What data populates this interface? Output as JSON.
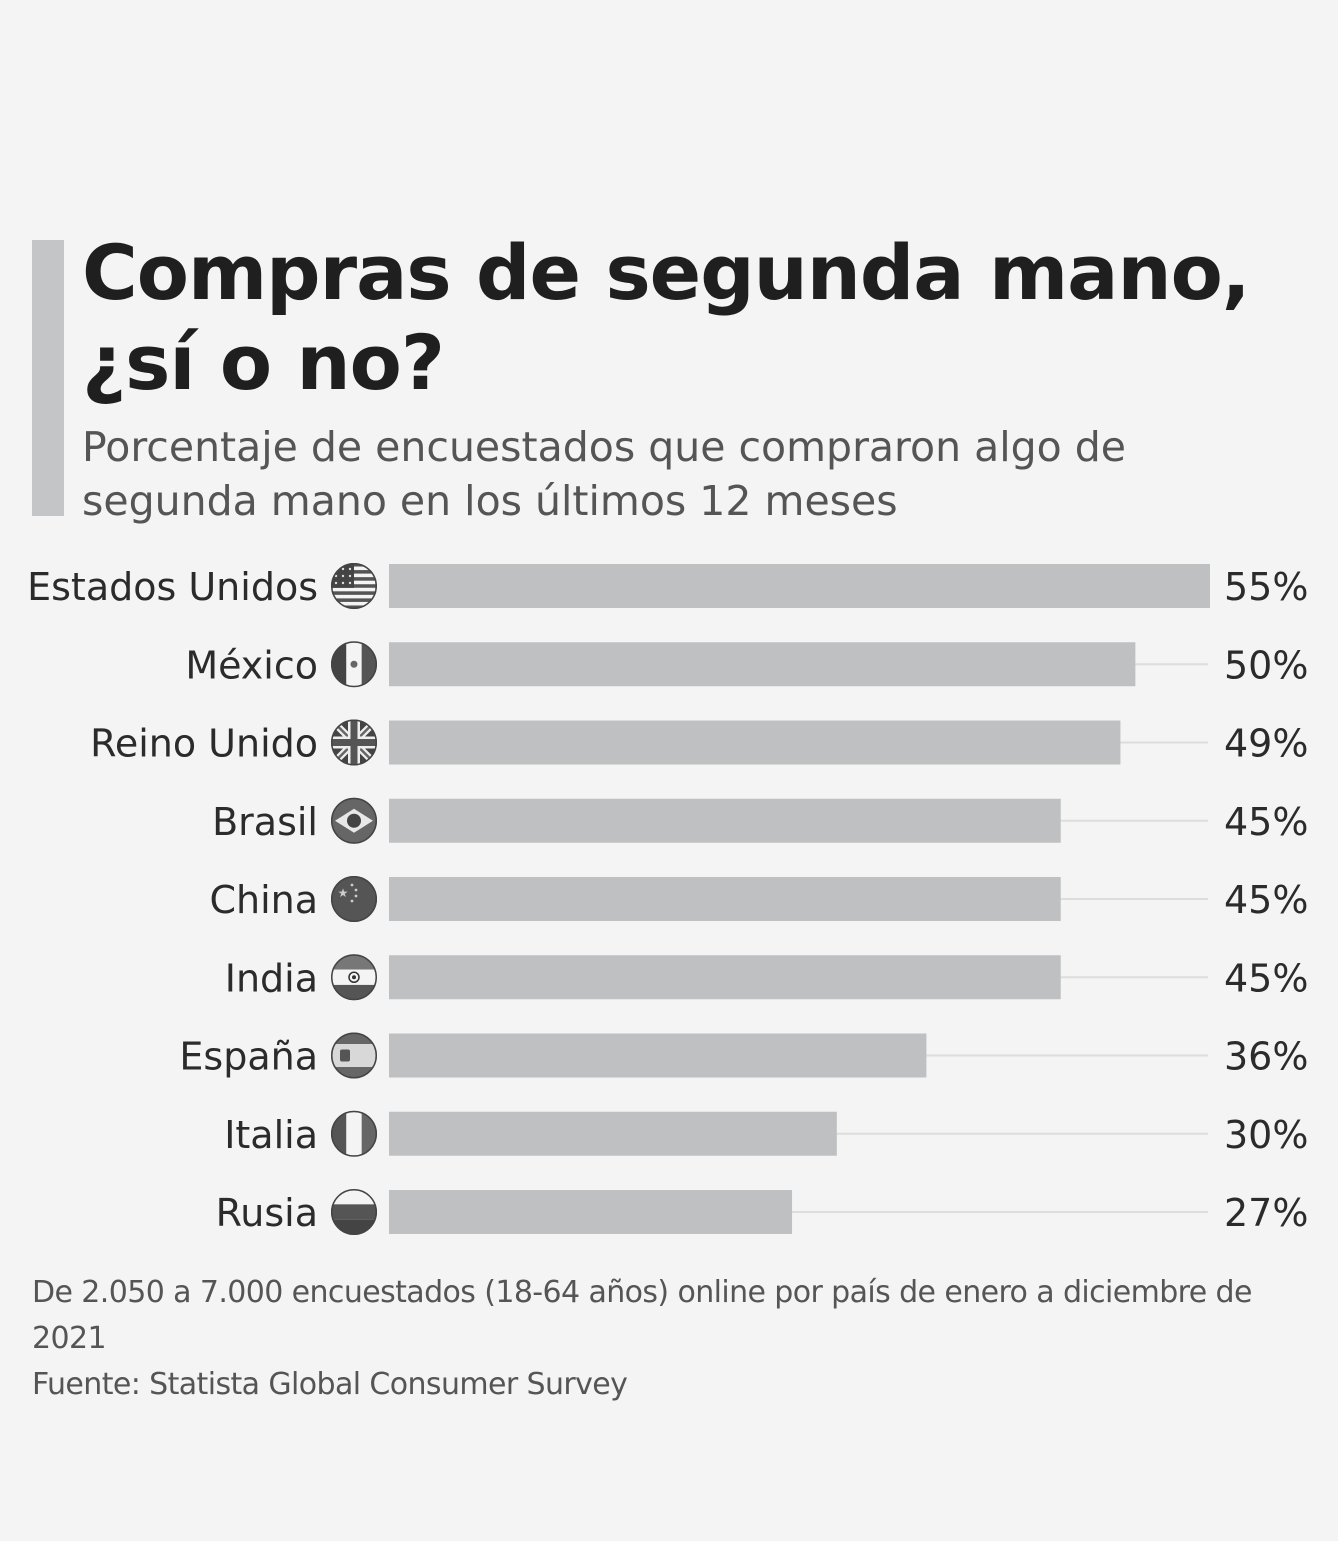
{
  "title": "Compras de segunda mano, ¿sí o no?",
  "subtitle": "Porcentaje de encuestados que compraron algo de segunda mano en los últimos 12 meses",
  "footer": {
    "note": "De 2.050 a 7.000 encuestados (18-64 años) online por país de enero a diciembre de 2021",
    "source": "Fuente: Statista Global Consumer Survey"
  },
  "colors": {
    "bar": "#bfc0c1",
    "track": "#dcdddd",
    "label": "#2b2b2b",
    "accent": "#c4c5c6"
  },
  "chart_data": {
    "type": "bar",
    "orientation": "horizontal",
    "categories": [
      "Estados Unidos",
      "México",
      "Reino Unido",
      "Brasil",
      "China",
      "India",
      "España",
      "Italia",
      "Rusia"
    ],
    "flag_icons": [
      "us-flag-icon",
      "mexico-flag-icon",
      "uk-flag-icon",
      "brazil-flag-icon",
      "china-flag-icon",
      "india-flag-icon",
      "spain-flag-icon",
      "italy-flag-icon",
      "russia-flag-icon"
    ],
    "values": [
      55,
      50,
      49,
      45,
      45,
      45,
      36,
      30,
      27
    ],
    "value_labels": [
      "55%",
      "50%",
      "49%",
      "45%",
      "45%",
      "45%",
      "36%",
      "30%",
      "27%"
    ],
    "unit": "%",
    "xlim": [
      0,
      55
    ],
    "title": "Compras de segunda mano, ¿sí o no?",
    "xlabel": "",
    "ylabel": "",
    "grid": false,
    "legend": "none"
  }
}
